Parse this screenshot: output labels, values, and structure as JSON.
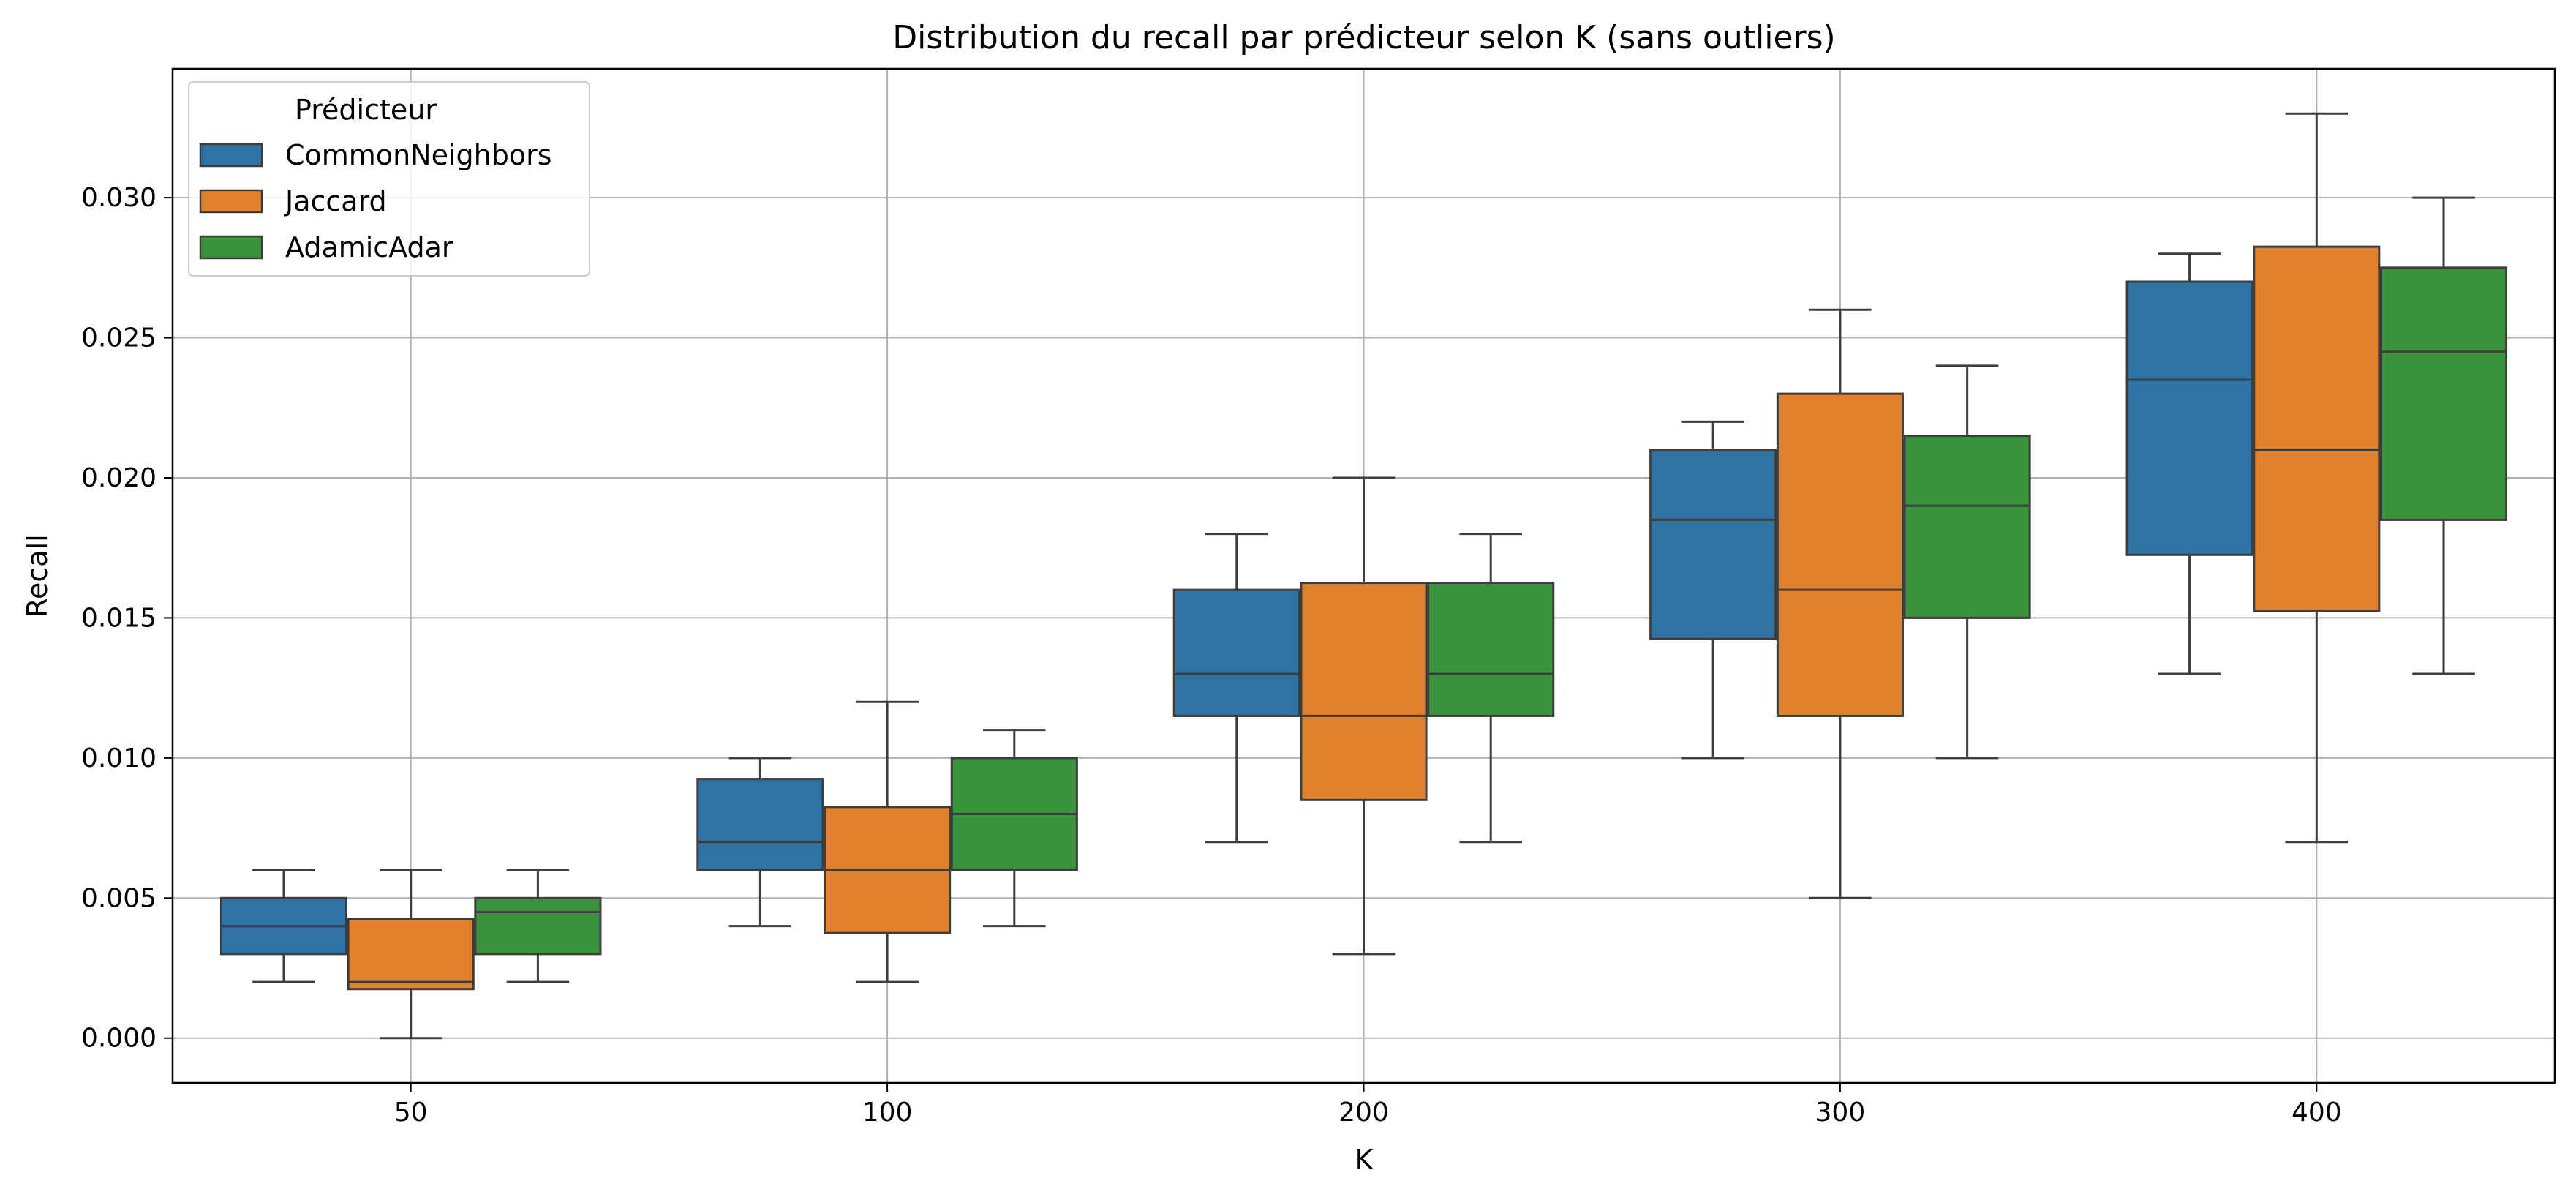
{
  "chart_data": {
    "type": "box",
    "title": "Distribution du recall par prédicteur selon K (sans outliers)",
    "xlabel": "K",
    "ylabel": "Recall",
    "categories": [
      "50",
      "100",
      "200",
      "300",
      "400"
    ],
    "ylim": [
      -0.0016,
      0.0346
    ],
    "yticks": [
      0.0,
      0.005,
      0.01,
      0.015,
      0.02,
      0.025,
      0.03
    ],
    "ytick_labels": [
      "0.000",
      "0.005",
      "0.010",
      "0.015",
      "0.020",
      "0.025",
      "0.030"
    ],
    "grid": true,
    "legend": {
      "title": "Prédicteur",
      "position": "top-left"
    },
    "series": [
      {
        "name": "CommonNeighbors",
        "color": "#2f72a4",
        "boxes": [
          {
            "whisker_low": 0.002,
            "q1": 0.003,
            "median": 0.004,
            "q3": 0.005,
            "whisker_high": 0.006
          },
          {
            "whisker_low": 0.004,
            "q1": 0.006,
            "median": 0.007,
            "q3": 0.00925,
            "whisker_high": 0.01
          },
          {
            "whisker_low": 0.007,
            "q1": 0.0115,
            "median": 0.013,
            "q3": 0.016,
            "whisker_high": 0.018
          },
          {
            "whisker_low": 0.01,
            "q1": 0.01425,
            "median": 0.0185,
            "q3": 0.021,
            "whisker_high": 0.022
          },
          {
            "whisker_low": 0.013,
            "q1": 0.01725,
            "median": 0.0235,
            "q3": 0.027,
            "whisker_high": 0.028
          }
        ]
      },
      {
        "name": "Jaccard",
        "color": "#e1812c",
        "boxes": [
          {
            "whisker_low": 0.0,
            "q1": 0.00175,
            "median": 0.002,
            "q3": 0.00425,
            "whisker_high": 0.006
          },
          {
            "whisker_low": 0.002,
            "q1": 0.00375,
            "median": 0.006,
            "q3": 0.00825,
            "whisker_high": 0.012
          },
          {
            "whisker_low": 0.003,
            "q1": 0.0085,
            "median": 0.0115,
            "q3": 0.01625,
            "whisker_high": 0.02
          },
          {
            "whisker_low": 0.005,
            "q1": 0.0115,
            "median": 0.016,
            "q3": 0.023,
            "whisker_high": 0.026
          },
          {
            "whisker_low": 0.007,
            "q1": 0.01525,
            "median": 0.021,
            "q3": 0.02825,
            "whisker_high": 0.033
          }
        ]
      },
      {
        "name": "AdamicAdar",
        "color": "#3a923a",
        "boxes": [
          {
            "whisker_low": 0.002,
            "q1": 0.003,
            "median": 0.0045,
            "q3": 0.005,
            "whisker_high": 0.006
          },
          {
            "whisker_low": 0.004,
            "q1": 0.006,
            "median": 0.008,
            "q3": 0.01,
            "whisker_high": 0.011
          },
          {
            "whisker_low": 0.007,
            "q1": 0.0115,
            "median": 0.013,
            "q3": 0.01625,
            "whisker_high": 0.018
          },
          {
            "whisker_low": 0.01,
            "q1": 0.015,
            "median": 0.019,
            "q3": 0.0215,
            "whisker_high": 0.024
          },
          {
            "whisker_low": 0.013,
            "q1": 0.0185,
            "median": 0.0245,
            "q3": 0.0275,
            "whisker_high": 0.03
          }
        ]
      }
    ]
  }
}
